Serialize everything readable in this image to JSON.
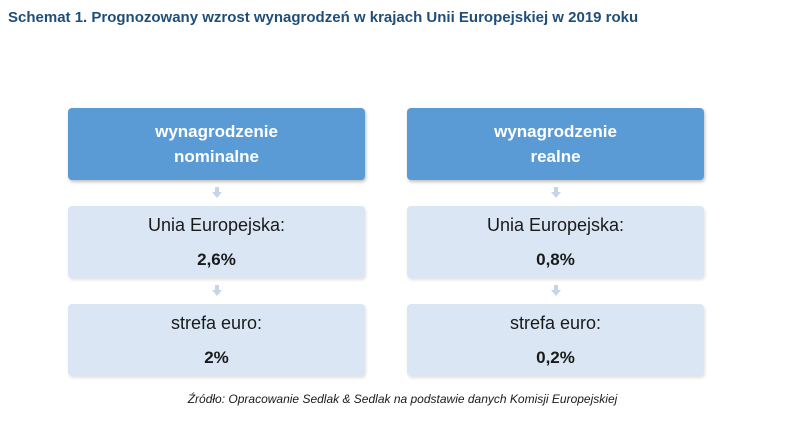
{
  "title": "Schemat 1. Prognozowany wzrost wynagrodzeń w krajach Unii Europejskiej w 2019 roku",
  "columns": [
    {
      "header_line1": "wynagrodzenie",
      "header_line2": "nominalne",
      "eu_label": "Unia Europejska:",
      "eu_value": "2,6%",
      "euro_label": "strefa euro:",
      "euro_value": "2%"
    },
    {
      "header_line1": "wynagrodzenie",
      "header_line2": "realne",
      "eu_label": "Unia Europejska:",
      "eu_value": "0,8%",
      "euro_label": "strefa euro:",
      "euro_value": "0,2%"
    }
  ],
  "source": "Źródło: Opracowanie Sedlak & Sedlak na podstawie danych Komisji Europejskiej",
  "colors": {
    "title": "#1f4e79",
    "header_box": "#5b9bd5",
    "cell_box": "#dae6f3",
    "arrow": "#c5d5e8"
  },
  "icons": [
    "down-arrow-icon"
  ]
}
